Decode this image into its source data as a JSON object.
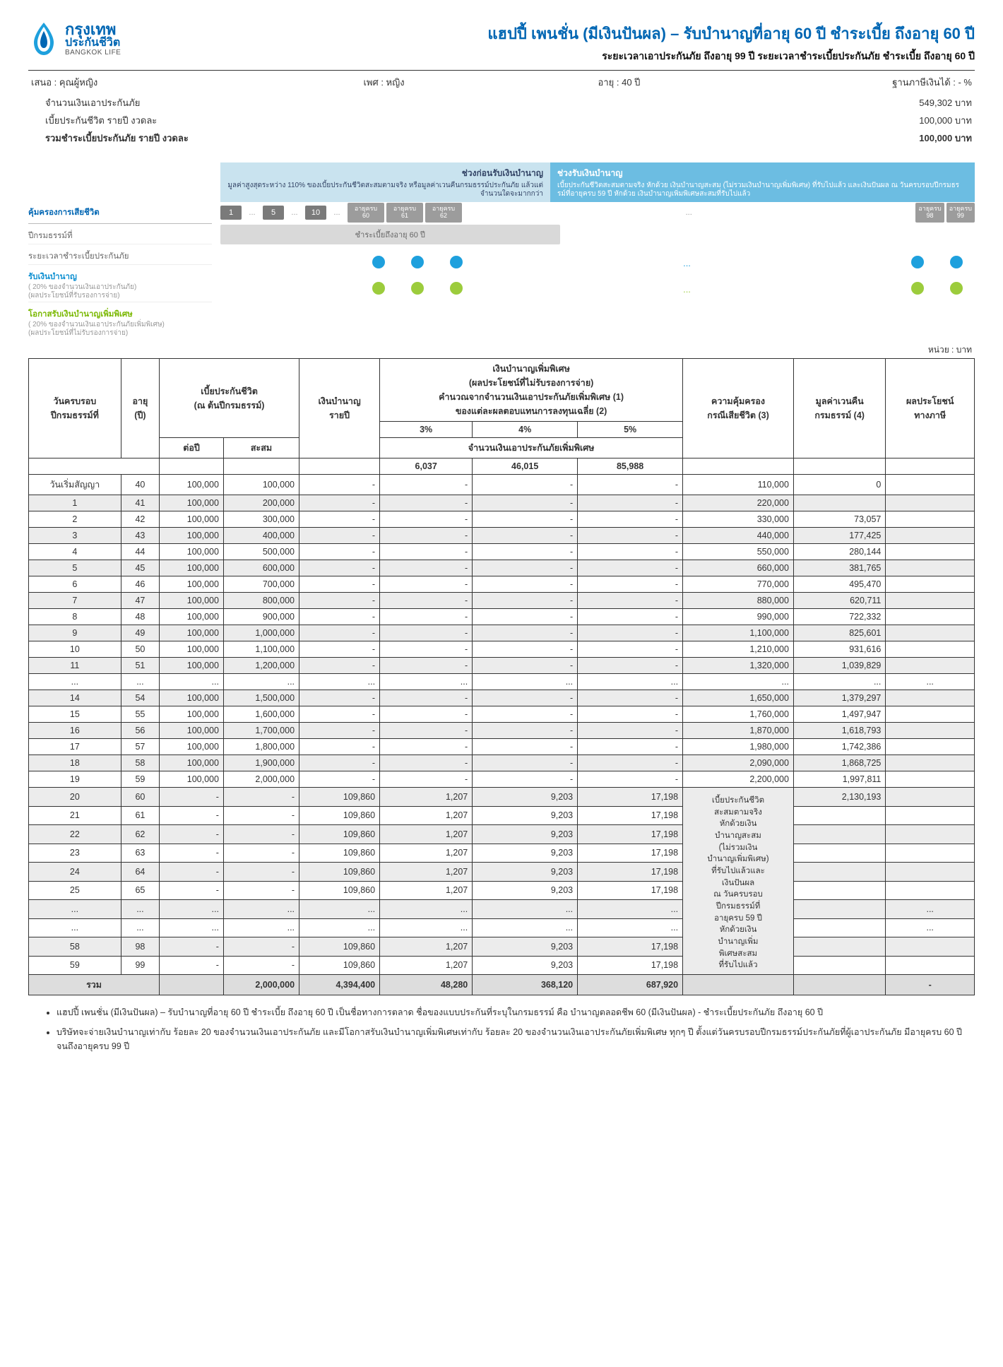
{
  "logo": {
    "name_th": "กรุงเทพ",
    "name_sub": "ประกันชีวิต",
    "name_en": "BANGKOK LIFE"
  },
  "title": {
    "main": "แฮปปี้ เพนชั่น (มีเงินปันผล) – รับบำนาญที่อายุ 60 ปี ชำระเบี้ย ถึงอายุ 60 ปี",
    "sub": "ระยะเวลาเอาประกันภัย ถึงอายุ 99 ปี ระยะเวลาชำระเบี้ยประกันภัย ชำระเบี้ย ถึงอายุ 60 ปี"
  },
  "info": {
    "offer_l": "เสนอ : คุณผู้หญิง",
    "gender": "เพศ : หญิง",
    "age": "อายุ : 40 ปี",
    "tax": "ฐานภาษีเงินได้ : - %",
    "line1_l": "จำนวนเงินเอาประกันภัย",
    "line1_r": "549,302 บาท",
    "line2_l": "เบี้ยประกันชีวิต รายปี งวดละ",
    "line2_r": "100,000 บาท",
    "line3_l": "รวมชำระเบี้ยประกันภัย รายปี งวดละ",
    "line3_r": "100,000 บาท"
  },
  "diagram": {
    "left_h1": "คุ้มครองการเสียชีวิต",
    "left_r1": "ปีกรมธรรม์ที่",
    "left_r2": "ระยะเวลาชำระเบี้ยประกันภัย",
    "left_b1": "รับเงินบำนาญ",
    "left_b1s": "( 20% ของจำนวนเงินเอาประกันภัย)\n(ผลประโยชน์ที่รับรองการจ่าย)",
    "left_g1": "โอกาสรับเงินบำนาญเพิ่มพิเศษ",
    "left_g1s": "( 20% ของจำนวนเงินเอาประกันภัยเพิ่มพิเศษ)\n(ผลประโยชน์ที่ไม่รับรองการจ่าย)",
    "band1_h": "ช่วงก่อนรับเงินบำนาญ",
    "band1_t": "มูลค่าสูงสุดระหว่าง 110% ของเบี้ยประกันชีวิตสะสมตามจริง หรือมูลค่าเวนคืนกรมธรรม์ประกันภัย แล้วแต่จำนวนใดจะมากกว่า",
    "band2_h": "ช่วงรับเงินบำนาญ",
    "band2_t": "เบี้ยประกันชีวิตสะสมตามจริง หักด้วย เงินบำนาญสะสม (ไม่รวมเงินบำนาญเพิ่มพิเศษ) ที่รับไปแล้ว และเงินปันผล ณ วันครบรอบปีกรมธรรม์ที่อายุครบ 59 ปี หักด้วย เงินบำนาญเพิ่มพิเศษสะสมที่รับไปแล้ว",
    "years": [
      "1",
      "...",
      "5",
      "...",
      "10",
      "...",
      "อายุครบ\n60",
      "อายุครบ\n61",
      "อายุครบ\n62",
      "...",
      "อายุครบ\n98",
      "อายุครบ\n99"
    ],
    "pay_label": "ชำระเบี้ยถึงอายุ 60 ปี"
  },
  "unit": "หน่วย : บาท",
  "table": {
    "h_year": "วันครบรอบ\nปีกรมธรรม์ที่",
    "h_age": "อายุ\n(ปี)",
    "h_premium": "เบี้ยประกันชีวิต\n(ณ ต้นปีกรมธรรม์)",
    "h_prem_y": "ต่อปี",
    "h_prem_acc": "สะสม",
    "h_pension": "เงินบำนาญ\nรายปี",
    "h_bonus": "เงินบำนาญเพิ่มพิเศษ\n(ผลประโยชน์ที่ไม่รับรองการจ่าย)\nคำนวณจากจำนวนเงินเอาประกันภัยเพิ่มพิเศษ (1)\nของแต่ละผลตอบแทนการลงทุนเฉลี่ย (2)",
    "h_b3": "3%",
    "h_b4": "4%",
    "h_b5": "5%",
    "h_bsub": "จำนวนเงินเอาประกันภัยเพิ่มพิเศษ",
    "h_bsub3": "6,037",
    "h_bsub4": "46,015",
    "h_bsub5": "85,988",
    "h_cover": "ความคุ้มครอง\nกรณีเสียชีวิต (3)",
    "h_surrender": "มูลค่าเวนคืน\nกรมธรรม์ (4)",
    "h_tax": "ผลประโยชน์\nทางภาษี",
    "rows": [
      {
        "y": "วันเริ่มสัญญา",
        "a": "40",
        "p": "100,000",
        "acc": "100,000",
        "pen": "-",
        "b3": "-",
        "b4": "-",
        "b5": "-",
        "cov": "110,000",
        "sur": "0",
        "g": 0
      },
      {
        "y": "1",
        "a": "41",
        "p": "100,000",
        "acc": "200,000",
        "pen": "-",
        "b3": "-",
        "b4": "-",
        "b5": "-",
        "cov": "220,000",
        "sur": "",
        "g": 1
      },
      {
        "y": "2",
        "a": "42",
        "p": "100,000",
        "acc": "300,000",
        "pen": "-",
        "b3": "-",
        "b4": "-",
        "b5": "-",
        "cov": "330,000",
        "sur": "73,057",
        "g": 0
      },
      {
        "y": "3",
        "a": "43",
        "p": "100,000",
        "acc": "400,000",
        "pen": "-",
        "b3": "-",
        "b4": "-",
        "b5": "-",
        "cov": "440,000",
        "sur": "177,425",
        "g": 1
      },
      {
        "y": "4",
        "a": "44",
        "p": "100,000",
        "acc": "500,000",
        "pen": "-",
        "b3": "-",
        "b4": "-",
        "b5": "-",
        "cov": "550,000",
        "sur": "280,144",
        "g": 0
      },
      {
        "y": "5",
        "a": "45",
        "p": "100,000",
        "acc": "600,000",
        "pen": "-",
        "b3": "-",
        "b4": "-",
        "b5": "-",
        "cov": "660,000",
        "sur": "381,765",
        "g": 1
      },
      {
        "y": "6",
        "a": "46",
        "p": "100,000",
        "acc": "700,000",
        "pen": "-",
        "b3": "-",
        "b4": "-",
        "b5": "-",
        "cov": "770,000",
        "sur": "495,470",
        "g": 0
      },
      {
        "y": "7",
        "a": "47",
        "p": "100,000",
        "acc": "800,000",
        "pen": "-",
        "b3": "-",
        "b4": "-",
        "b5": "-",
        "cov": "880,000",
        "sur": "620,711",
        "g": 1
      },
      {
        "y": "8",
        "a": "48",
        "p": "100,000",
        "acc": "900,000",
        "pen": "-",
        "b3": "-",
        "b4": "-",
        "b5": "-",
        "cov": "990,000",
        "sur": "722,332",
        "g": 0
      },
      {
        "y": "9",
        "a": "49",
        "p": "100,000",
        "acc": "1,000,000",
        "pen": "-",
        "b3": "-",
        "b4": "-",
        "b5": "-",
        "cov": "1,100,000",
        "sur": "825,601",
        "g": 1
      },
      {
        "y": "10",
        "a": "50",
        "p": "100,000",
        "acc": "1,100,000",
        "pen": "-",
        "b3": "-",
        "b4": "-",
        "b5": "-",
        "cov": "1,210,000",
        "sur": "931,616",
        "g": 0
      },
      {
        "y": "11",
        "a": "51",
        "p": "100,000",
        "acc": "1,200,000",
        "pen": "-",
        "b3": "-",
        "b4": "-",
        "b5": "-",
        "cov": "1,320,000",
        "sur": "1,039,829",
        "g": 1
      },
      {
        "y": "...",
        "a": "...",
        "p": "...",
        "acc": "...",
        "pen": "...",
        "b3": "...",
        "b4": "...",
        "b5": "...",
        "cov": "...",
        "sur": "...",
        "g": 0,
        "tax": "..."
      },
      {
        "y": "14",
        "a": "54",
        "p": "100,000",
        "acc": "1,500,000",
        "pen": "-",
        "b3": "-",
        "b4": "-",
        "b5": "-",
        "cov": "1,650,000",
        "sur": "1,379,297",
        "g": 1
      },
      {
        "y": "15",
        "a": "55",
        "p": "100,000",
        "acc": "1,600,000",
        "pen": "-",
        "b3": "-",
        "b4": "-",
        "b5": "-",
        "cov": "1,760,000",
        "sur": "1,497,947",
        "g": 0
      },
      {
        "y": "16",
        "a": "56",
        "p": "100,000",
        "acc": "1,700,000",
        "pen": "-",
        "b3": "-",
        "b4": "-",
        "b5": "-",
        "cov": "1,870,000",
        "sur": "1,618,793",
        "g": 1
      },
      {
        "y": "17",
        "a": "57",
        "p": "100,000",
        "acc": "1,800,000",
        "pen": "-",
        "b3": "-",
        "b4": "-",
        "b5": "-",
        "cov": "1,980,000",
        "sur": "1,742,386",
        "g": 0
      },
      {
        "y": "18",
        "a": "58",
        "p": "100,000",
        "acc": "1,900,000",
        "pen": "-",
        "b3": "-",
        "b4": "-",
        "b5": "-",
        "cov": "2,090,000",
        "sur": "1,868,725",
        "g": 1
      },
      {
        "y": "19",
        "a": "59",
        "p": "100,000",
        "acc": "2,000,000",
        "pen": "-",
        "b3": "-",
        "b4": "-",
        "b5": "-",
        "cov": "2,200,000",
        "sur": "1,997,811",
        "g": 0
      },
      {
        "y": "20",
        "a": "60",
        "p": "-",
        "acc": "-",
        "pen": "109,860",
        "b3": "1,207",
        "b4": "9,203",
        "b5": "17,198",
        "cov": "NOTE",
        "sur": "2,130,193",
        "g": 1
      },
      {
        "y": "21",
        "a": "61",
        "p": "-",
        "acc": "-",
        "pen": "109,860",
        "b3": "1,207",
        "b4": "9,203",
        "b5": "17,198",
        "cov": "",
        "sur": "",
        "g": 0
      },
      {
        "y": "22",
        "a": "62",
        "p": "-",
        "acc": "-",
        "pen": "109,860",
        "b3": "1,207",
        "b4": "9,203",
        "b5": "17,198",
        "cov": "",
        "sur": "",
        "g": 1
      },
      {
        "y": "23",
        "a": "63",
        "p": "-",
        "acc": "-",
        "pen": "109,860",
        "b3": "1,207",
        "b4": "9,203",
        "b5": "17,198",
        "cov": "",
        "sur": "",
        "g": 0
      },
      {
        "y": "24",
        "a": "64",
        "p": "-",
        "acc": "-",
        "pen": "109,860",
        "b3": "1,207",
        "b4": "9,203",
        "b5": "17,198",
        "cov": "",
        "sur": "",
        "g": 1
      },
      {
        "y": "25",
        "a": "65",
        "p": "-",
        "acc": "-",
        "pen": "109,860",
        "b3": "1,207",
        "b4": "9,203",
        "b5": "17,198",
        "cov": "",
        "sur": "",
        "g": 0
      },
      {
        "y": "...",
        "a": "...",
        "p": "...",
        "acc": "...",
        "pen": "...",
        "b3": "...",
        "b4": "...",
        "b5": "...",
        "cov": "",
        "sur": "",
        "g": 1,
        "tax": "..."
      },
      {
        "y": "...",
        "a": "...",
        "p": "...",
        "acc": "...",
        "pen": "...",
        "b3": "...",
        "b4": "...",
        "b5": "...",
        "cov": "",
        "sur": "",
        "g": 0,
        "tax": "..."
      },
      {
        "y": "58",
        "a": "98",
        "p": "-",
        "acc": "-",
        "pen": "109,860",
        "b3": "1,207",
        "b4": "9,203",
        "b5": "17,198",
        "cov": "",
        "sur": "",
        "g": 1
      },
      {
        "y": "59",
        "a": "99",
        "p": "-",
        "acc": "-",
        "pen": "109,860",
        "b3": "1,207",
        "b4": "9,203",
        "b5": "17,198",
        "cov": "",
        "sur": "",
        "g": 0
      }
    ],
    "note": "เบี้ยประกันชีวิต\nสะสมตามจริง\nหักด้วยเงิน\nบำนาญสะสม\n(ไม่รวมเงิน\nบำนาญเพิ่มพิเศษ)\nที่รับไปแล้วและ\nเงินปันผล\nณ วันครบรอบ\nปีกรมธรรม์ที่\nอายุครบ 59 ปี\nหักด้วยเงิน\nบำนาญเพิ่ม\nพิเศษสะสม\nที่รับไปแล้ว",
    "total": {
      "l": "รวม",
      "acc": "2,000,000",
      "pen": "4,394,400",
      "b3": "48,280",
      "b4": "368,120",
      "b5": "687,920",
      "tax": "-"
    }
  },
  "footnotes": [
    "แฮปปี้ เพนชั่น (มีเงินปันผล) – รับบำนาญที่อายุ 60 ปี ชำระเบี้ย ถึงอายุ 60 ปี เป็นชื่อทางการตลาด ชื่อของแบบประกันที่ระบุในกรมธรรม์ คือ บำนาญตลอดชีพ 60 (มีเงินปันผล) - ชำระเบี้ยประกันภัย ถึงอายุ 60 ปี",
    "บริษัทจะจ่ายเงินบำนาญเท่ากับ ร้อยละ 20 ของจำนวนเงินเอาประกันภัย และมีโอกาสรับเงินบำนาญเพิ่มพิเศษเท่ากับ ร้อยละ 20 ของจำนวนเงินเอาประกันภัยเพิ่มพิเศษ ทุกๆ ปี ตั้งแต่วันครบรอบปีกรมธรรม์ประกันภัยที่ผู้เอาประกันภัย มีอายุครบ 60 ปี จนถึงอายุครบ 99 ปี"
  ]
}
